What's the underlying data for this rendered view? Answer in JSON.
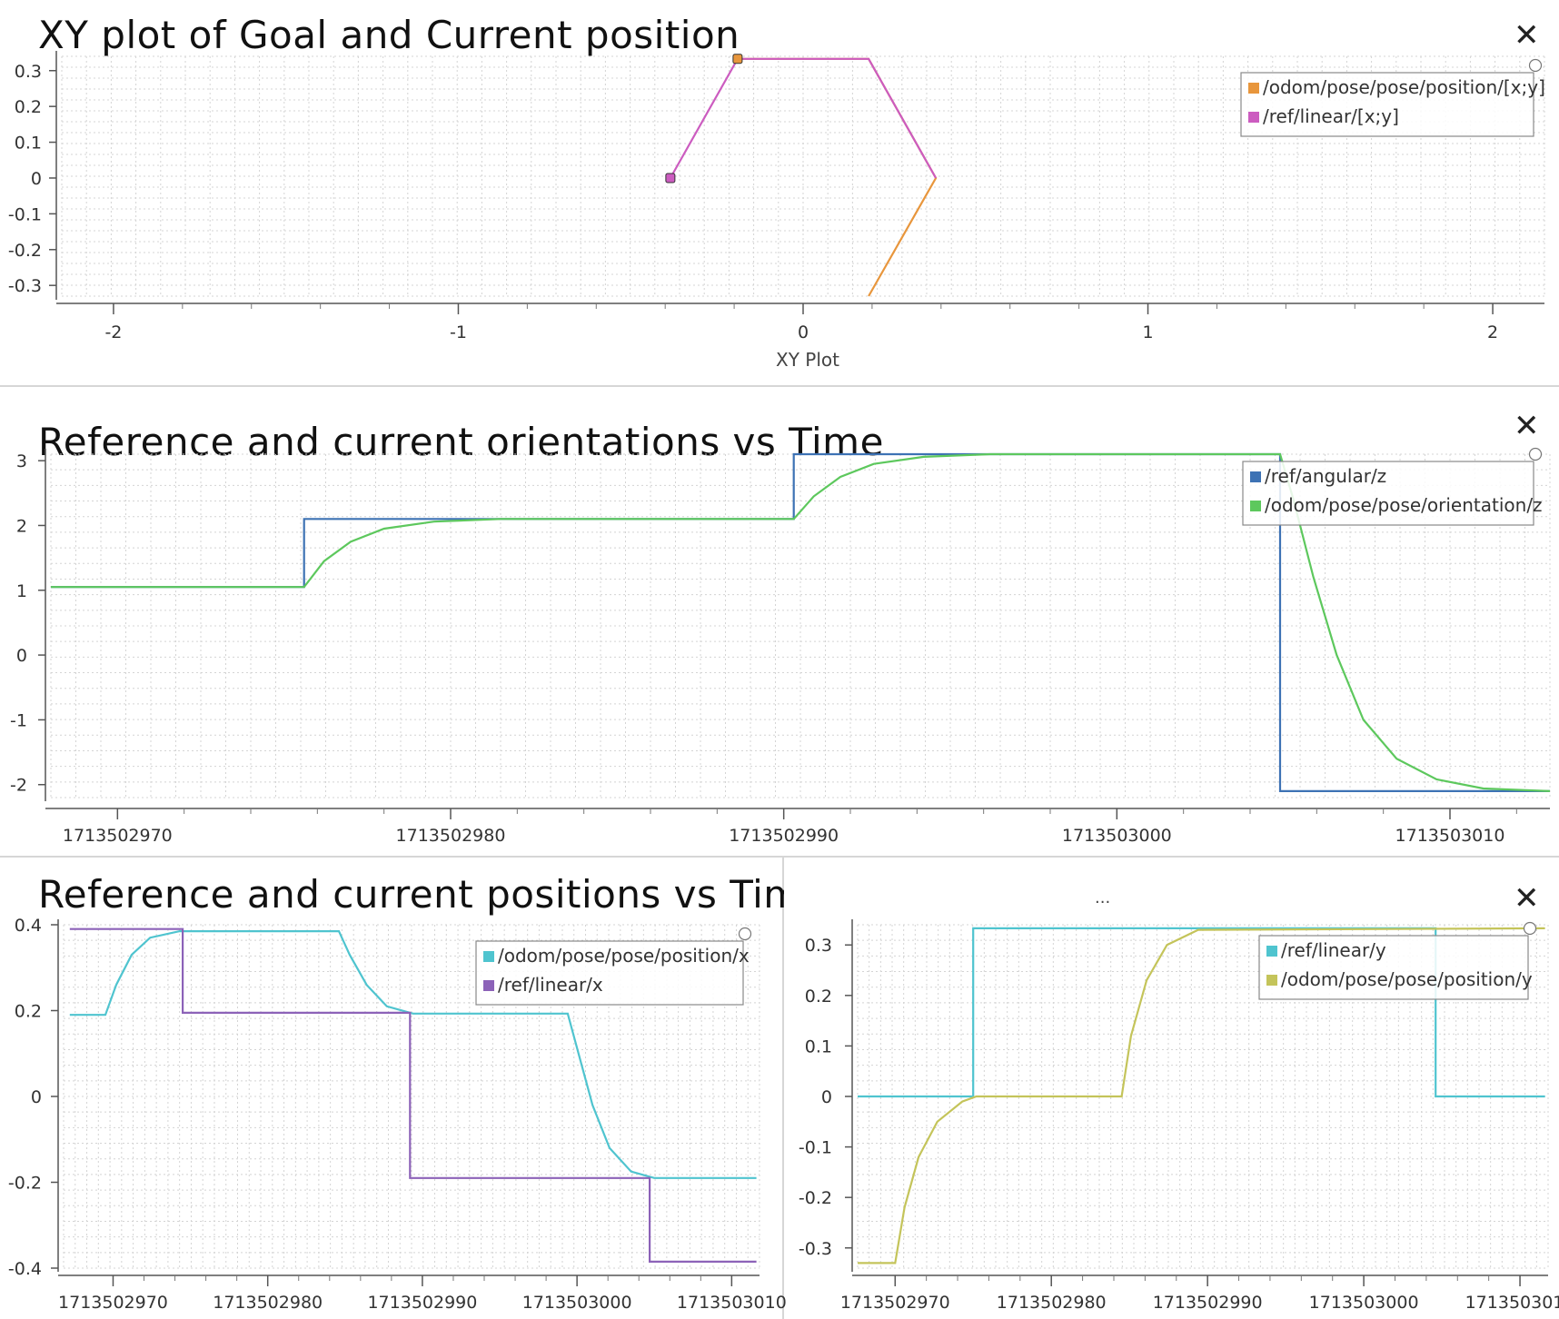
{
  "panels": {
    "xy": {
      "title": "XY plot of Goal and Current position",
      "x_tick_labels": [
        "-2",
        "-1",
        "0",
        "1",
        "2"
      ],
      "y_tick_labels": [
        "0.3",
        "0.2",
        "0.1",
        "0",
        "-0.1",
        "-0.2",
        "-0.3"
      ],
      "xlabel": "XY Plot"
    },
    "orient": {
      "title": "Reference and current orientations vs Time",
      "x_tick_labels": [
        "1713502970",
        "1713502980",
        "1713502990",
        "1713503000",
        "1713503010"
      ],
      "y_tick_labels": [
        "3",
        "2",
        "1",
        "0",
        "-1",
        "-2"
      ]
    },
    "posx": {
      "title": "Reference and current positions vs Time",
      "x_tick_labels": [
        "1713502970",
        "1713502980",
        "1713502990",
        "1713503000",
        "1713503010"
      ],
      "y_tick_labels": [
        "0.4",
        "0.2",
        "0",
        "-0.2",
        "-0.4"
      ]
    },
    "posy": {
      "dots": "...",
      "x_tick_labels": [
        "1713502970",
        "1713502980",
        "1713502990",
        "1713503000",
        "1713503010"
      ],
      "y_tick_labels": [
        "0.3",
        "0.2",
        "0.1",
        "0",
        "-0.1",
        "-0.2",
        "-0.3"
      ]
    }
  },
  "chart_data": [
    {
      "id": "xy",
      "type": "line",
      "title": "XY plot of Goal and Current position",
      "xlabel": "XY Plot",
      "xlim": [
        -2.15,
        2.15
      ],
      "ylim": [
        -0.33,
        0.34
      ],
      "grid": true,
      "legend": "top-right",
      "series": [
        {
          "name": "/odom/pose/pose/position/[x;y]",
          "color": "#e8963c",
          "points": [
            [
              0.19,
              -0.33
            ],
            [
              0.385,
              0.0
            ],
            [
              0.19,
              0.333
            ],
            [
              -0.19,
              0.333
            ]
          ]
        },
        {
          "name": "/ref/linear/[x;y]",
          "color": "#cc5cc0",
          "points": [
            [
              -0.385,
              0.0
            ],
            [
              -0.19,
              0.333
            ],
            [
              0.19,
              0.333
            ],
            [
              0.385,
              0.0
            ]
          ]
        }
      ]
    },
    {
      "id": "orient",
      "type": "line",
      "title": "Reference and current orientations vs Time",
      "xlim": [
        1713502968,
        1713503013
      ],
      "ylim": [
        -2.2,
        3.1
      ],
      "grid": true,
      "legend": "top-right",
      "series": [
        {
          "name": "/ref/angular/z",
          "color": "#3d72b4",
          "points": [
            [
              1713502968,
              1.05
            ],
            [
              1713502975.6,
              1.05
            ],
            [
              1713502975.6,
              2.1
            ],
            [
              1713502990.3,
              2.1
            ],
            [
              1713502990.3,
              3.1
            ],
            [
              1713503004.9,
              3.1
            ],
            [
              1713503004.9,
              -2.1
            ],
            [
              1713503013,
              -2.1
            ]
          ]
        },
        {
          "name": "/odom/pose/pose/orientation/z",
          "color": "#5dc85d",
          "points": [
            [
              1713502968,
              1.05
            ],
            [
              1713502975.6,
              1.05
            ],
            [
              1713502976.2,
              1.45
            ],
            [
              1713502977.0,
              1.75
            ],
            [
              1713502978.0,
              1.95
            ],
            [
              1713502979.5,
              2.06
            ],
            [
              1713502981.5,
              2.1
            ],
            [
              1713502990.3,
              2.1
            ],
            [
              1713502990.9,
              2.45
            ],
            [
              1713502991.7,
              2.75
            ],
            [
              1713502992.7,
              2.95
            ],
            [
              1713502994.2,
              3.06
            ],
            [
              1713502996.2,
              3.1
            ],
            [
              1713503004.9,
              3.1
            ],
            [
              1713503005.3,
              2.4
            ],
            [
              1713503005.9,
              1.2
            ],
            [
              1713503006.6,
              0.0
            ],
            [
              1713503007.4,
              -1.0
            ],
            [
              1713503008.4,
              -1.6
            ],
            [
              1713503009.6,
              -1.92
            ],
            [
              1713503011.0,
              -2.06
            ],
            [
              1713503013,
              -2.1
            ]
          ]
        }
      ]
    },
    {
      "id": "posx",
      "type": "line",
      "title": "Reference and current positions vs Time",
      "xlim": [
        1713502966.8,
        1713503011.8
      ],
      "ylim": [
        -0.4,
        0.4
      ],
      "grid": true,
      "legend": "top-right",
      "series": [
        {
          "name": "/odom/pose/pose/position/x",
          "color": "#4fc4cf",
          "points": [
            [
              1713502967.2,
              0.19
            ],
            [
              1713502969.5,
              0.19
            ],
            [
              1713502970.2,
              0.26
            ],
            [
              1713502971.2,
              0.33
            ],
            [
              1713502972.4,
              0.37
            ],
            [
              1713502974.3,
              0.385
            ],
            [
              1713502984.6,
              0.385
            ],
            [
              1713502985.3,
              0.33
            ],
            [
              1713502986.4,
              0.26
            ],
            [
              1713502987.7,
              0.21
            ],
            [
              1713502989.4,
              0.193
            ],
            [
              1713502999.4,
              0.193
            ],
            [
              1713503000.1,
              0.1
            ],
            [
              1713503001.0,
              -0.02
            ],
            [
              1713503002.1,
              -0.12
            ],
            [
              1713503003.5,
              -0.175
            ],
            [
              1713503005.0,
              -0.19
            ],
            [
              1713503011.6,
              -0.19
            ]
          ]
        },
        {
          "name": "/ref/linear/x",
          "color": "#8c62b8",
          "points": [
            [
              1713502967.2,
              0.39
            ],
            [
              1713502974.5,
              0.39
            ],
            [
              1713502974.5,
              0.195
            ],
            [
              1713502989.2,
              0.195
            ],
            [
              1713502989.2,
              -0.19
            ],
            [
              1713503004.7,
              -0.19
            ],
            [
              1713503004.7,
              -0.385
            ],
            [
              1713503011.6,
              -0.385
            ]
          ]
        }
      ]
    },
    {
      "id": "posy",
      "type": "line",
      "xlim": [
        1713502967.6,
        1713503011.8
      ],
      "ylim": [
        -0.34,
        0.34
      ],
      "grid": true,
      "legend": "top-right",
      "series": [
        {
          "name": "/ref/linear/y",
          "color": "#4fc4cf",
          "points": [
            [
              1713502967.6,
              0.0
            ],
            [
              1713502975.0,
              0.0
            ],
            [
              1713502975.0,
              0.333
            ],
            [
              1713503004.6,
              0.333
            ],
            [
              1713503004.6,
              0.0
            ],
            [
              1713503011.6,
              0.0
            ]
          ]
        },
        {
          "name": "/odom/pose/pose/position/y",
          "color": "#c4c45a",
          "points": [
            [
              1713502967.6,
              -0.33
            ],
            [
              1713502970.0,
              -0.33
            ],
            [
              1713502970.6,
              -0.22
            ],
            [
              1713502971.5,
              -0.12
            ],
            [
              1713502972.7,
              -0.05
            ],
            [
              1713502974.3,
              -0.01
            ],
            [
              1713502975.2,
              0.0
            ],
            [
              1713502984.5,
              0.0
            ],
            [
              1713502985.1,
              0.12
            ],
            [
              1713502986.1,
              0.23
            ],
            [
              1713502987.4,
              0.3
            ],
            [
              1713502989.4,
              0.33
            ],
            [
              1713503011.6,
              0.333
            ]
          ]
        }
      ]
    }
  ]
}
